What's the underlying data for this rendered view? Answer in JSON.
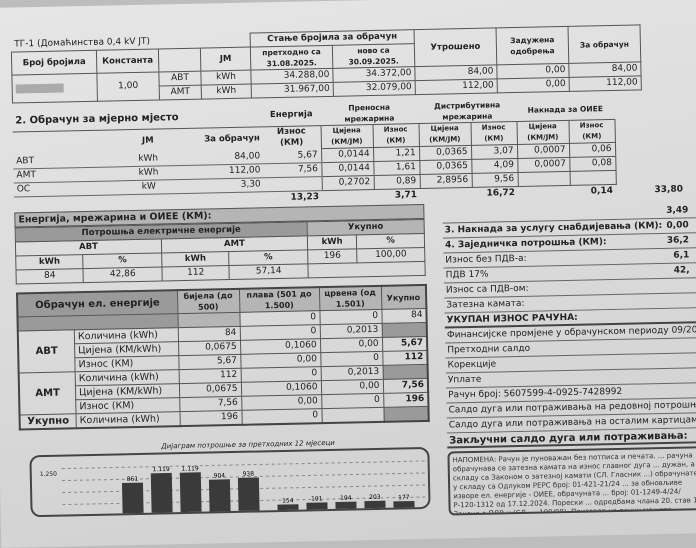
{
  "meters": {
    "tariff_group": "ТГ-1 (Домаћинства 0,4 kV ЈТ)",
    "headers": {
      "meter_no": "Број бројила",
      "constant": "Константа",
      "unit": "ЈМ",
      "readings": "Стање бројила за обрачун",
      "previous": "претходно са 31.08.2025.",
      "new": "ново са 30.09.2025.",
      "consumed": "Утрошено",
      "debited": "Задужена одобрења",
      "for_billing": "За обрачун"
    },
    "constant": "1,00",
    "rows": [
      {
        "tariff": "АВТ",
        "unit": "kWh",
        "previous": "34.288,00",
        "new": "34.372,00",
        "consumed": "84,00",
        "debited": "0,00",
        "for_billing": "84,00"
      },
      {
        "tariff": "АМТ",
        "unit": "kWh",
        "previous": "31.967,00",
        "new": "32.079,00",
        "consumed": "112,00",
        "debited": "0,00",
        "for_billing": "112,00"
      }
    ]
  },
  "billing": {
    "title": "2. Обрачун за мјерно мјесто",
    "headers": {
      "unit": "ЈМ",
      "for_billing": "За обрачун",
      "energy": "Енергија",
      "amount": "Износ (КМ)",
      "transmission": "Преносна мрежарина",
      "price": "Цијена (КМ/ЈМ)",
      "distribution": "Дистрибутивна мрежарина",
      "oiee": "Накнада за ОИЕЕ"
    },
    "rows": [
      {
        "label": "АВТ",
        "unit": "kWh",
        "qty": "84,00",
        "energy": "5,67",
        "tr_price": "0,0144",
        "tr_amount": "1,21",
        "di_price": "0,0365",
        "di_amount": "3,07",
        "oi_price": "0,0007",
        "oi_amount": "0,06"
      },
      {
        "label": "АМТ",
        "unit": "kWh",
        "qty": "112,00",
        "energy": "7,56",
        "tr_price": "0,0144",
        "tr_amount": "1,61",
        "di_price": "0,0365",
        "di_amount": "4,09",
        "oi_price": "0,0007",
        "oi_amount": "0,08"
      },
      {
        "label": "ОС",
        "unit": "kW",
        "qty": "3,30",
        "energy": "",
        "tr_price": "0,2702",
        "tr_amount": "0,89",
        "di_price": "2,8956",
        "di_amount": "9,56",
        "oi_price": "",
        "oi_amount": ""
      }
    ],
    "totals": {
      "energy": "13,23",
      "transmission": "3,71",
      "distribution": "16,72",
      "oiee": "0,14",
      "sum": "33,80"
    },
    "sum_label": "Енергија, мрежарина и ОИЕЕ (КМ):"
  },
  "summary": {
    "items": [
      {
        "label": "",
        "value": "3,49"
      },
      {
        "label": "3. Накнада за услугу снабдијевања (КМ):",
        "value": "0,00"
      },
      {
        "label": "4. Заједничка потрошња (КМ):",
        "value": "36,2"
      },
      {
        "label": "Износ без ПДВ-а:",
        "value": "6,1"
      },
      {
        "label": "ПДВ 17%",
        "value": "42,"
      },
      {
        "label": "Износ са ПДВ-ом:",
        "value": ""
      },
      {
        "label": "Затезна камата:",
        "value": ""
      }
    ],
    "total_label": "УКУПАН ИЗНОС РАЧУНА:",
    "lines": [
      "Финансијске промјене у обрачунском периоду 09/202",
      "Претходни салдо",
      "Корекције",
      "Уплате",
      "Рачун број: 5607599-4-0925-7428992",
      "Салдо дуга или потраживања на редовној потрошњи",
      "Салдо дуга или потраживања на осталим картицама"
    ],
    "closing_label": "Закључни салдо дуга или потраживања:",
    "note": "НАПОМЕНА: Рачун је пуноважан без потписа и печата. ... рачуна обрачунава се затезна камата на износ главног дуга ... дужан, а у складу са Законом о затезној камати (СЛ. Гласник ...) обрачунате у складу са Одлуком РЕРС број: 01-421-21/24 ... за обновљиве изворе ел. енергије - ОИЕЕ, обрачуната ... број: 01-1249-4/24/Р-120-1312 од 17.12.2024. Порески ... одредбама члана 20. став 1. Закона о ПДВ-у (СЛ. ... 100/08). Приговор на рачун можете уложити у року ..."
  },
  "consumption": {
    "title": "Потрошња електричне енергије",
    "section_label": "Енергија, мрежарина и ОИЕЕ (КМ):",
    "avt": "АВТ",
    "amt": "АМТ",
    "total": "Укупно",
    "kwh": "kWh",
    "pct": "%",
    "avt_kwh": "84",
    "avt_pct": "42,86",
    "amt_kwh": "112",
    "amt_pct": "57,14",
    "tot_kwh": "196",
    "tot_pct": "100,00"
  },
  "calc": {
    "title": "Обрачун ел. енергије",
    "headers": [
      "бијела (до 500)",
      "плава (501 до 1.500)",
      "црвена (од 1.501)",
      "Укупно"
    ],
    "header_row_values": [
      "",
      "0",
      "0",
      "84"
    ],
    "groups": [
      {
        "name": "АВТ",
        "rows": [
          {
            "label": "Количина (kWh)",
            "w": "84",
            "b": "0",
            "r": "0,2013",
            "t": ""
          },
          {
            "label": "Цијена (KM/kWh)",
            "w": "0,0675",
            "b": "0,1060",
            "r": "0,00",
            "t": "5,67"
          },
          {
            "label": "Износ (КМ)",
            "w": "5,67",
            "b": "0,00",
            "r": "0",
            "t": "112"
          }
        ]
      },
      {
        "name": "АМТ",
        "rows": [
          {
            "label": "Количина (kWh)",
            "w": "112",
            "b": "0",
            "r": "0,2013",
            "t": ""
          },
          {
            "label": "Цијена (KM/kWh)",
            "w": "0,0675",
            "b": "0,1060",
            "r": "0,00",
            "t": "7,56"
          },
          {
            "label": "Износ (КМ)",
            "w": "7,56",
            "b": "0,00",
            "r": "0",
            "t": "196"
          }
        ]
      },
      {
        "name": "Укупно",
        "rows": [
          {
            "label": "Количина (kWh)",
            "w": "196",
            "b": "0",
            "r": "",
            "t": ""
          }
        ]
      }
    ]
  },
  "chart_data": {
    "type": "bar",
    "title": "Дијаграм потрошње за претходних 12 мјесеци",
    "ytick_labels": [
      "1.250"
    ],
    "values": [
      861,
      1119,
      1119,
      904,
      938,
      154,
      191,
      194,
      203,
      177
    ],
    "value_labels": [
      "861",
      "1.119",
      "1.119",
      "904",
      "938",
      "154",
      "191",
      "194",
      "203",
      "177"
    ],
    "bar_color": "#3a3a3a",
    "grid": true
  }
}
